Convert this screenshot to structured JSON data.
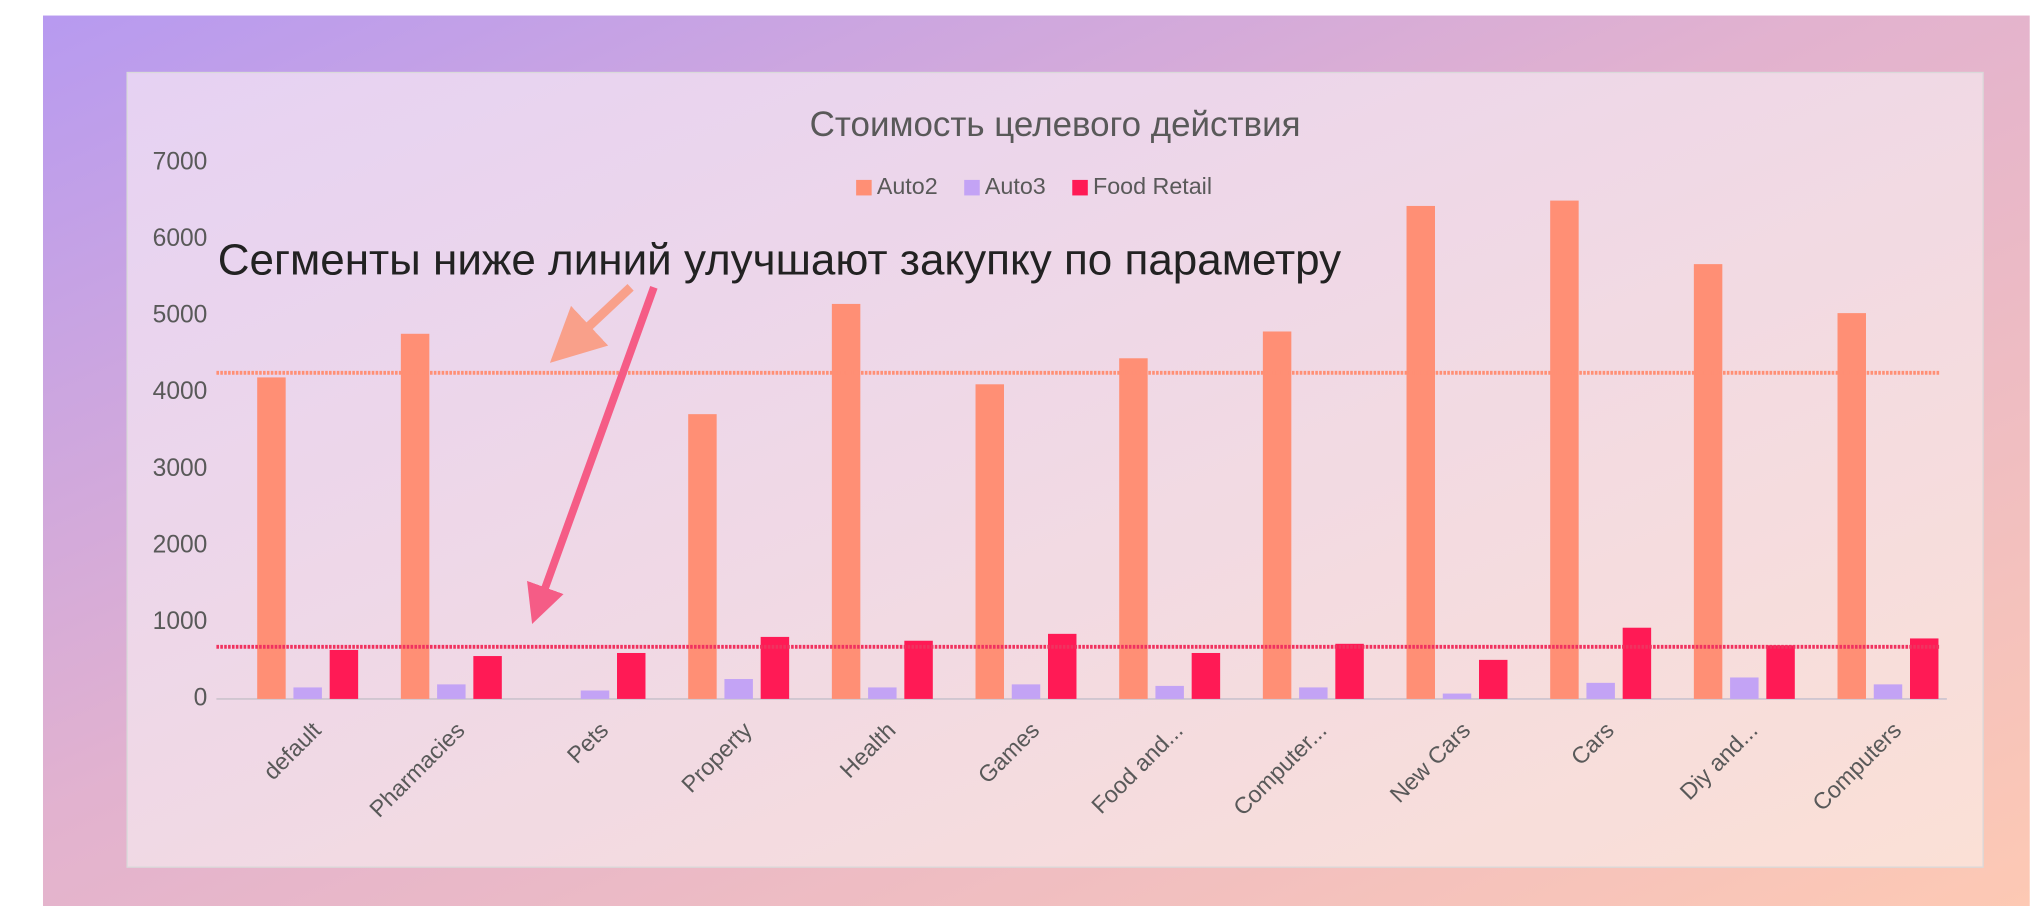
{
  "chart_data": {
    "type": "bar",
    "title": "Стоимость целевого действия",
    "annotation": "Сегменты ниже линий улучшают закупку по параметру",
    "categories": [
      "default",
      "Pharmacies",
      "Pets",
      "Property",
      "Health",
      "Games",
      "Food and...",
      "Computer...",
      "New Cars",
      "Cars",
      "Diy and...",
      "Computers"
    ],
    "series": [
      {
        "name": "Auto2",
        "color": "#ff8f75",
        "values": [
          4200,
          4770,
          null,
          3720,
          5160,
          4110,
          4450,
          4800,
          6440,
          6510,
          5680,
          5040
        ]
      },
      {
        "name": "Auto3",
        "color": "#c3a3f5",
        "values": [
          150,
          190,
          110,
          260,
          150,
          190,
          170,
          150,
          70,
          210,
          280,
          190
        ]
      },
      {
        "name": "Food Retail",
        "color": "#ff1a55",
        "values": [
          640,
          560,
          600,
          810,
          760,
          850,
          600,
          720,
          510,
          930,
          700,
          790
        ]
      }
    ],
    "reference_lines": [
      {
        "value": 4260,
        "color": "#ff8f75"
      },
      {
        "value": 680,
        "color": "#f0325f"
      }
    ],
    "ylim": [
      0,
      7000
    ],
    "yticks": [
      0,
      1000,
      2000,
      3000,
      4000,
      5000,
      6000,
      7000
    ],
    "legend": "top"
  }
}
